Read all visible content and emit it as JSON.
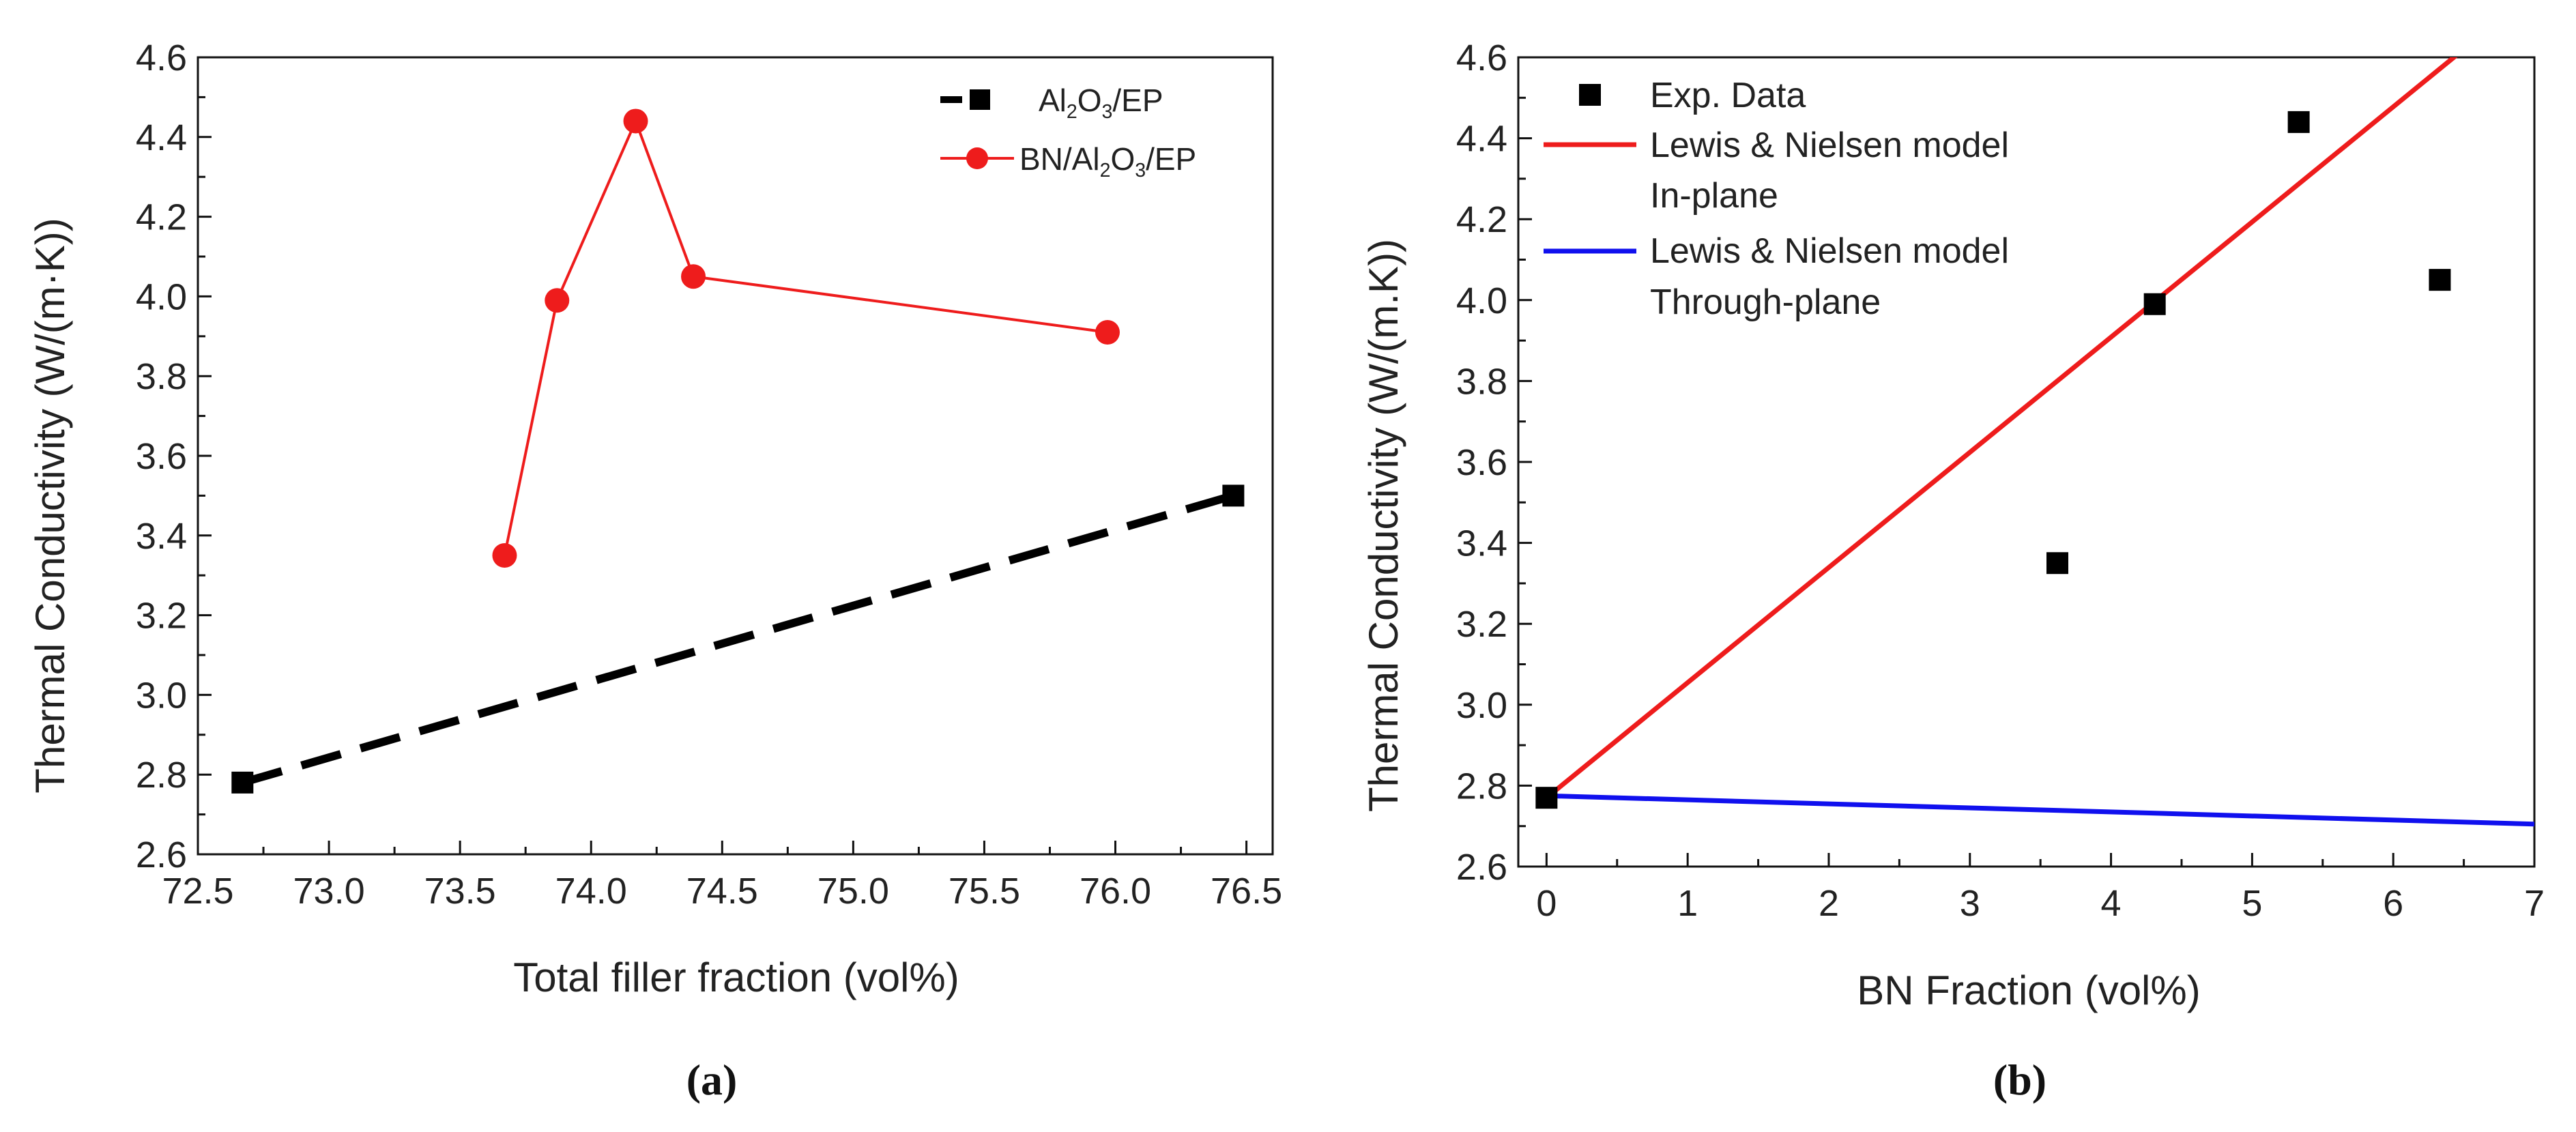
{
  "chart_data": [
    {
      "panel": "(a)",
      "type": "line",
      "xlabel": "Total filler fraction (vol%)",
      "ylabel": "Thermal Conductivity (W/(m·K))",
      "xlim": [
        72.5,
        76.6
      ],
      "ylim": [
        2.6,
        4.6
      ],
      "xticks": [
        "72.5",
        "73.0",
        "73.5",
        "74.0",
        "74.5",
        "75.0",
        "75.5",
        "76.0",
        "76.5"
      ],
      "yticks": [
        "2.6",
        "2.8",
        "3.0",
        "3.2",
        "3.4",
        "3.6",
        "3.8",
        "4.0",
        "4.2",
        "4.4",
        "4.6"
      ],
      "legend_position": "top-right",
      "grid": false,
      "series": [
        {
          "name": "Al2O3/EP",
          "name_parts": [
            "Al",
            "2",
            "O",
            "3",
            "/EP"
          ],
          "color": "#000000",
          "marker": "square",
          "line_style": "dashed",
          "x": [
            72.67,
            76.45
          ],
          "y": [
            2.78,
            3.5
          ]
        },
        {
          "name": "BN/Al2O3/EP",
          "name_parts": [
            "BN/Al",
            "2",
            "O",
            "3",
            "/EP"
          ],
          "color": "#ee1c1c",
          "marker": "circle",
          "line_style": "solid",
          "x": [
            73.67,
            73.87,
            74.17,
            74.39,
            75.97
          ],
          "y": [
            3.35,
            3.99,
            4.44,
            4.05,
            3.91
          ]
        }
      ]
    },
    {
      "panel": "(b)",
      "type": "scatter",
      "xlabel": "BN Fraction (vol%)",
      "ylabel": "Thermal Conductivity (W/(m.K))",
      "xlim": [
        -0.2,
        7
      ],
      "ylim": [
        2.6,
        4.6
      ],
      "xticks": [
        "0",
        "1",
        "2",
        "3",
        "4",
        "5",
        "6",
        "7"
      ],
      "yticks": [
        "2.6",
        "2.8",
        "3.0",
        "3.2",
        "3.4",
        "3.6",
        "3.8",
        "4.0",
        "4.2",
        "4.4",
        "4.6"
      ],
      "legend_position": "top-left",
      "grid": false,
      "series": [
        {
          "name": "Exp. Data",
          "color": "#000000",
          "marker": "square",
          "kind": "points",
          "x": [
            0,
            3.62,
            4.31,
            5.33,
            6.33
          ],
          "y": [
            2.77,
            3.35,
            3.99,
            4.44,
            4.05
          ]
        },
        {
          "name": "Lewis & Nielsen model",
          "name_line2": "In-plane",
          "color": "#ee1c1c",
          "kind": "line",
          "x": [
            0,
            6.5
          ],
          "y": [
            2.77,
            4.62
          ]
        },
        {
          "name": "Lewis & Nielsen model",
          "name_line2": "Through-plane",
          "color": "#1010ee",
          "kind": "line",
          "x": [
            0,
            7
          ],
          "y": [
            2.775,
            2.705
          ]
        }
      ]
    }
  ],
  "captions": {
    "a": "(a)",
    "b": "(b)"
  }
}
